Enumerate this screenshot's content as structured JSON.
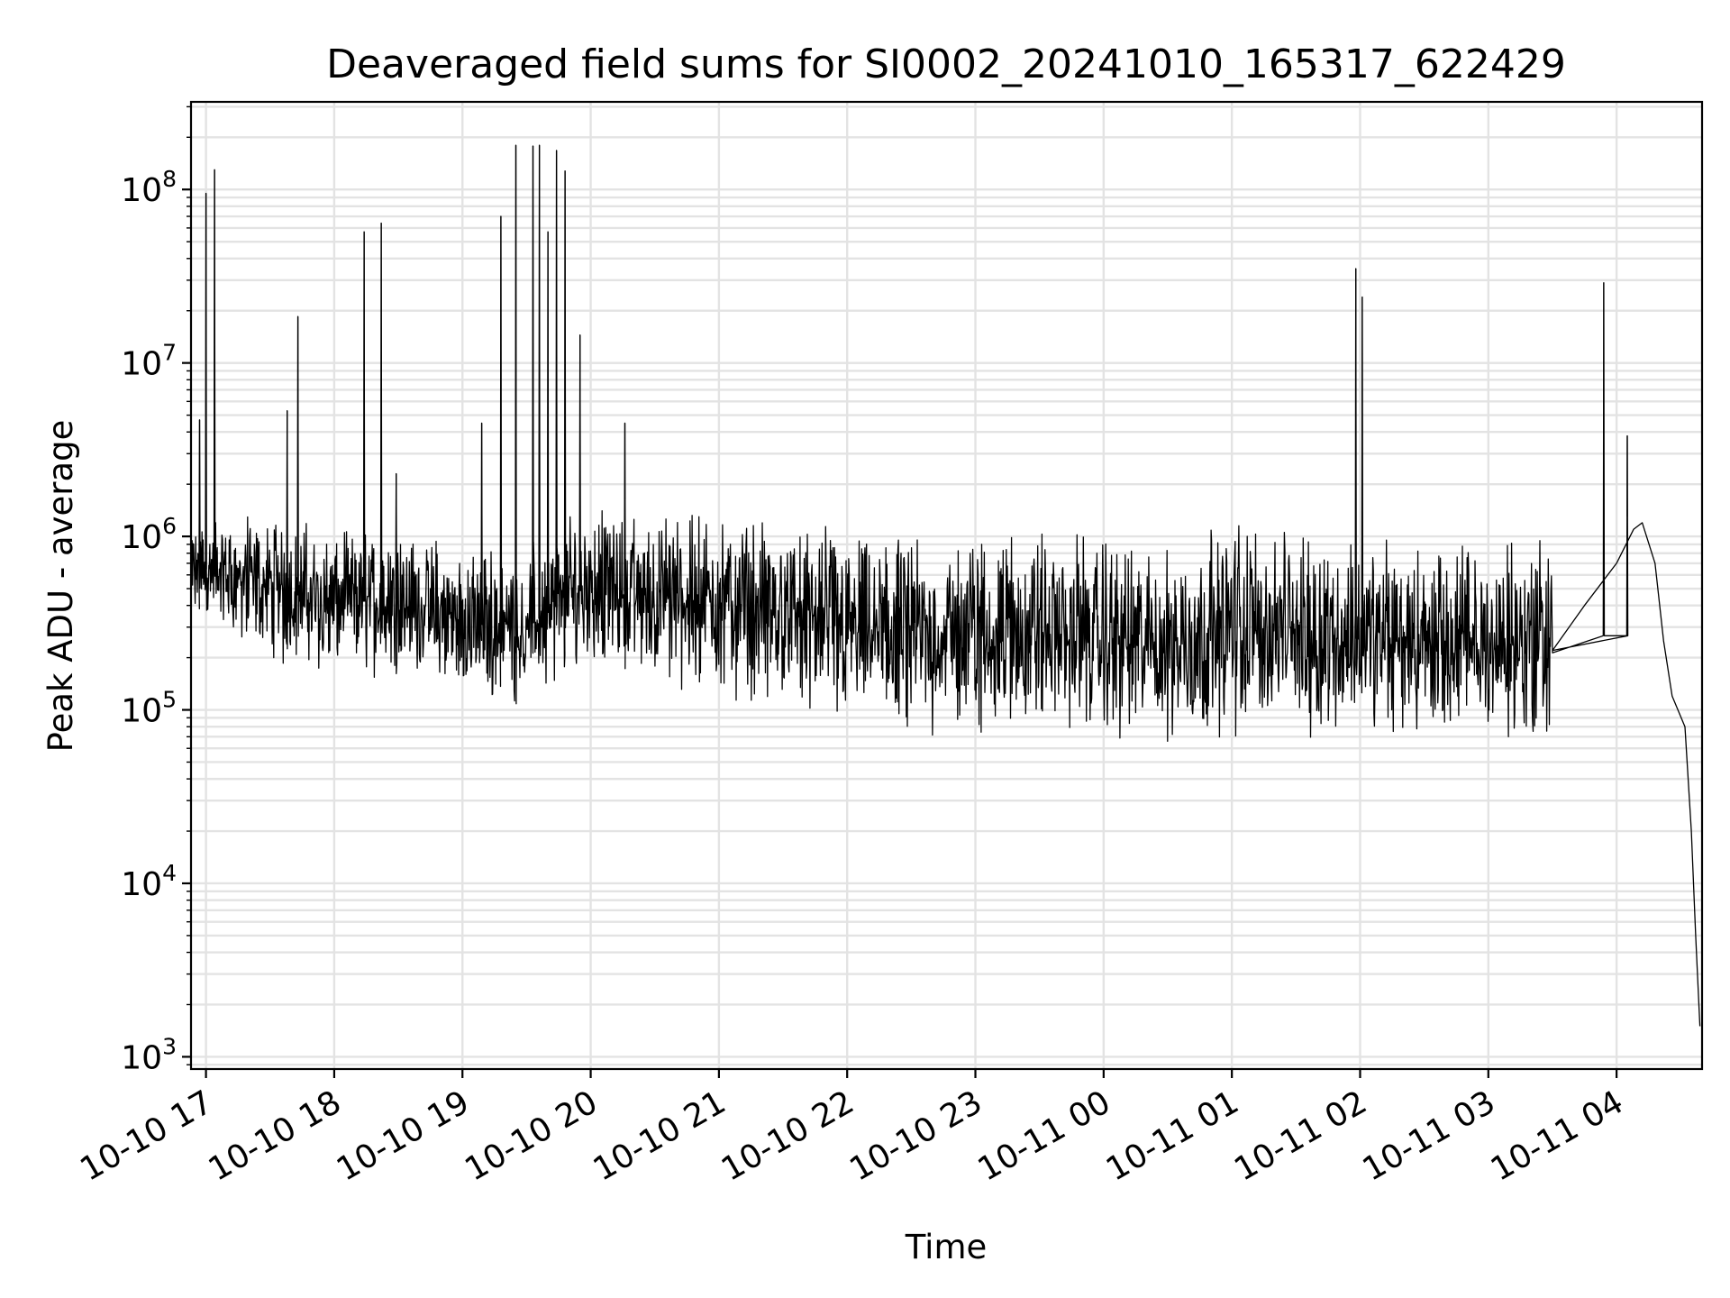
{
  "chart_data": {
    "type": "line",
    "title": "Deaveraged field sums for SI0002_20241010_165317_622429",
    "xlabel": "Time",
    "ylabel": "Peak ADU - average",
    "yscale": "log",
    "ylim": [
      850,
      320000000
    ],
    "xlim": [
      "2024-10-10 16:53",
      "2024-10-11 04:40"
    ],
    "grid": true,
    "grid_minor": true,
    "x_tick_labels": [
      "10-10 17",
      "10-10 18",
      "10-10 19",
      "10-10 20",
      "10-10 21",
      "10-10 22",
      "10-10 23",
      "10-11 00",
      "10-11 01",
      "10-11 02",
      "10-11 03",
      "10-11 04"
    ],
    "x_tick_values": [
      "2024-10-10 17:00",
      "2024-10-10 18:00",
      "2024-10-10 19:00",
      "2024-10-10 20:00",
      "2024-10-10 21:00",
      "2024-10-10 22:00",
      "2024-10-10 23:00",
      "2024-10-11 00:00",
      "2024-10-11 01:00",
      "2024-10-11 02:00",
      "2024-10-11 03:00",
      "2024-10-11 04:00"
    ],
    "y_tick_labels": [
      {
        "base": "10",
        "exp": "3",
        "value": 1000
      },
      {
        "base": "10",
        "exp": "4",
        "value": 10000
      },
      {
        "base": "10",
        "exp": "5",
        "value": 100000
      },
      {
        "base": "10",
        "exp": "6",
        "value": 1000000
      },
      {
        "base": "10",
        "exp": "7",
        "value": 10000000
      },
      {
        "base": "10",
        "exp": "8",
        "value": 100000000
      }
    ],
    "series": [
      {
        "color": "#000000",
        "baseline": [
          {
            "x": "2024-10-10 16:53",
            "lo": 300000,
            "hi": 1200000
          },
          {
            "x": "2024-10-10 17:00",
            "lo": 300000,
            "hi": 1400000
          },
          {
            "x": "2024-10-10 17:30",
            "lo": 180000,
            "hi": 1400000
          },
          {
            "x": "2024-10-10 18:00",
            "lo": 140000,
            "hi": 1200000
          },
          {
            "x": "2024-10-10 18:30",
            "lo": 160000,
            "hi": 1200000
          },
          {
            "x": "2024-10-10 19:00",
            "lo": 110000,
            "hi": 900000
          },
          {
            "x": "2024-10-10 19:30",
            "lo": 100000,
            "hi": 900000
          },
          {
            "x": "2024-10-10 20:00",
            "lo": 160000,
            "hi": 1800000
          },
          {
            "x": "2024-10-10 20:30",
            "lo": 130000,
            "hi": 1500000
          },
          {
            "x": "2024-10-10 21:00",
            "lo": 110000,
            "hi": 1600000
          },
          {
            "x": "2024-10-10 21:30",
            "lo": 90000,
            "hi": 1400000
          },
          {
            "x": "2024-10-10 22:00",
            "lo": 70000,
            "hi": 1200000
          },
          {
            "x": "2024-10-10 22:30",
            "lo": 65000,
            "hi": 1100000
          },
          {
            "x": "2024-10-10 23:00",
            "lo": 60000,
            "hi": 1300000
          },
          {
            "x": "2024-10-10 23:30",
            "lo": 70000,
            "hi": 1200000
          },
          {
            "x": "2024-10-11 00:00",
            "lo": 60000,
            "hi": 1100000
          },
          {
            "x": "2024-10-11 00:30",
            "lo": 55000,
            "hi": 1000000
          },
          {
            "x": "2024-10-11 01:00",
            "lo": 65000,
            "hi": 1400000
          },
          {
            "x": "2024-10-11 01:30",
            "lo": 65000,
            "hi": 1200000
          },
          {
            "x": "2024-10-11 02:00",
            "lo": 60000,
            "hi": 1100000
          },
          {
            "x": "2024-10-11 02:30",
            "lo": 55000,
            "hi": 1100000
          },
          {
            "x": "2024-10-11 03:00",
            "lo": 55000,
            "hi": 1000000
          },
          {
            "x": "2024-10-11 03:30",
            "lo": 55000,
            "hi": 1300000
          }
        ],
        "tail": [
          {
            "x": "2024-10-11 03:30",
            "y": 220000
          },
          {
            "x": "2024-10-11 03:45",
            "y": 400000
          },
          {
            "x": "2024-10-11 04:00",
            "y": 700000
          },
          {
            "x": "2024-10-11 04:08",
            "y": 1100000
          },
          {
            "x": "2024-10-11 04:12",
            "y": 1200000
          },
          {
            "x": "2024-10-11 04:18",
            "y": 700000
          },
          {
            "x": "2024-10-11 04:22",
            "y": 250000
          },
          {
            "x": "2024-10-11 04:26",
            "y": 120000
          },
          {
            "x": "2024-10-11 04:32",
            "y": 80000
          },
          {
            "x": "2024-10-11 04:35",
            "y": 20000
          },
          {
            "x": "2024-10-11 04:37",
            "y": 5000
          },
          {
            "x": "2024-10-11 04:39",
            "y": 1500
          }
        ],
        "spikes": [
          {
            "x": "2024-10-10 16:57",
            "y": 4700000
          },
          {
            "x": "2024-10-10 17:00",
            "y": 95000000
          },
          {
            "x": "2024-10-10 17:04",
            "y": 130000000
          },
          {
            "x": "2024-10-10 17:38",
            "y": 5300000
          },
          {
            "x": "2024-10-10 17:43",
            "y": 18500000
          },
          {
            "x": "2024-10-10 18:14",
            "y": 57000000
          },
          {
            "x": "2024-10-10 18:22",
            "y": 64000000
          },
          {
            "x": "2024-10-10 18:29",
            "y": 2300000
          },
          {
            "x": "2024-10-10 19:09",
            "y": 4500000
          },
          {
            "x": "2024-10-10 19:18",
            "y": 70000000
          },
          {
            "x": "2024-10-10 19:25",
            "y": 180000000
          },
          {
            "x": "2024-10-10 19:33",
            "y": 178000000
          },
          {
            "x": "2024-10-10 19:36",
            "y": 180000000
          },
          {
            "x": "2024-10-10 19:40",
            "y": 57000000
          },
          {
            "x": "2024-10-10 19:44",
            "y": 168000000
          },
          {
            "x": "2024-10-10 19:48",
            "y": 128000000
          },
          {
            "x": "2024-10-10 19:55",
            "y": 14500000
          },
          {
            "x": "2024-10-10 20:16",
            "y": 4500000
          },
          {
            "x": "2024-10-11 01:58",
            "y": 35000000
          },
          {
            "x": "2024-10-11 02:01",
            "y": 24000000
          },
          {
            "x": "2024-10-11 03:54",
            "y": 29000000
          },
          {
            "x": "2024-10-11 04:05",
            "y": 3800000
          }
        ]
      }
    ]
  }
}
